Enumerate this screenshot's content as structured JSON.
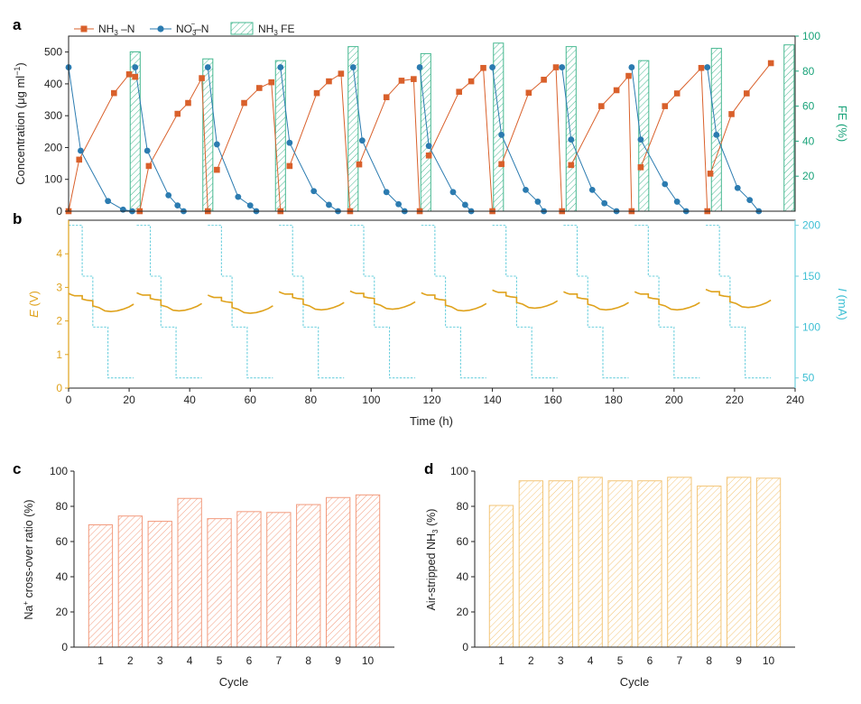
{
  "colors": {
    "nh3": "#d9602b",
    "no3": "#2b7bb0",
    "fe": "#45b890",
    "fe_axis": "#1aa37a",
    "potential": "#dfa21c",
    "current": "#6fd0de",
    "current_axis": "#3fc0d4",
    "bar_c": "#f29a7c",
    "bar_d": "#f3c577",
    "axis": "#222222"
  },
  "chart_data": [
    {
      "panel": "a",
      "type": "line",
      "x_shared_with": "b",
      "ylabel_left": "Concentration (μg ml",
      "ylabel_left_sup": "−1",
      "ylabel_left_tail": ")",
      "ylabel_right": "FE (%)",
      "ylim_left": [
        0,
        550
      ],
      "ylim_right": [
        0,
        100
      ],
      "yticks_left": [
        "0",
        "100",
        "200",
        "300",
        "400",
        "500"
      ],
      "yticks_right": [
        "20",
        "40",
        "60",
        "80",
        "100"
      ],
      "legend": [
        {
          "name": "NH",
          "sub": "3",
          "tail": " –N",
          "marker": "square"
        },
        {
          "name": "NO",
          "sub": "3",
          "sup": "−",
          "tail": "–N",
          "marker": "circle"
        },
        {
          "name": "NH",
          "sub": "3",
          "tail": " FE",
          "marker": "hatch"
        }
      ],
      "series": [
        {
          "name": "NH3–N",
          "cycles": [
            [
              [
                0,
                0
              ],
              [
                3.5,
                162
              ],
              [
                15,
                371
              ],
              [
                20,
                430
              ],
              [
                22,
                422
              ]
            ],
            [
              [
                23.5,
                0
              ],
              [
                26.5,
                142
              ],
              [
                36,
                306
              ],
              [
                39.5,
                340
              ],
              [
                44,
                418
              ],
              [
                46,
                0
              ]
            ],
            [
              [
                49,
                130
              ],
              [
                58,
                340
              ],
              [
                63,
                387
              ],
              [
                67,
                405
              ],
              [
                70,
                0
              ]
            ],
            [
              [
                73,
                142
              ],
              [
                82,
                371
              ],
              [
                86,
                408
              ],
              [
                90,
                432
              ],
              [
                93,
                0
              ]
            ],
            [
              [
                96,
                147
              ],
              [
                105,
                358
              ],
              [
                110,
                410
              ],
              [
                114,
                415
              ],
              [
                116,
                0
              ]
            ],
            [
              [
                119,
                175
              ],
              [
                129,
                375
              ],
              [
                133,
                408
              ],
              [
                137,
                450
              ],
              [
                140,
                0
              ]
            ],
            [
              [
                143,
                148
              ],
              [
                152,
                372
              ],
              [
                157,
                413
              ],
              [
                161,
                452
              ],
              [
                163,
                0
              ]
            ],
            [
              [
                166,
                145
              ],
              [
                176,
                330
              ],
              [
                181,
                380
              ],
              [
                185,
                425
              ],
              [
                186,
                0
              ]
            ],
            [
              [
                189,
                138
              ],
              [
                197,
                330
              ],
              [
                201,
                370
              ],
              [
                209,
                450
              ],
              [
                211,
                0
              ]
            ],
            [
              [
                212,
                118
              ],
              [
                219,
                305
              ],
              [
                224,
                370
              ],
              [
                232,
                465
              ]
            ]
          ]
        },
        {
          "name": "NO3−–N",
          "cycles": [
            [
              [
                0,
                452
              ],
              [
                4,
                190
              ],
              [
                13,
                32
              ],
              [
                18,
                5
              ],
              [
                21,
                0
              ]
            ],
            [
              [
                22,
                452
              ],
              [
                26,
                190
              ],
              [
                33,
                50
              ],
              [
                36,
                18
              ],
              [
                38,
                0
              ]
            ],
            [
              [
                46,
                452
              ],
              [
                49,
                210
              ],
              [
                56,
                45
              ],
              [
                60,
                18
              ],
              [
                62,
                0
              ]
            ],
            [
              [
                70,
                452
              ],
              [
                73,
                215
              ],
              [
                81,
                63
              ],
              [
                86,
                20
              ],
              [
                89,
                0
              ]
            ],
            [
              [
                94,
                452
              ],
              [
                97,
                222
              ],
              [
                105,
                60
              ],
              [
                109,
                22
              ],
              [
                111,
                0
              ]
            ],
            [
              [
                116,
                452
              ],
              [
                119,
                205
              ],
              [
                127,
                60
              ],
              [
                131,
                20
              ],
              [
                133,
                0
              ]
            ],
            [
              [
                140,
                452
              ],
              [
                143,
                240
              ],
              [
                151,
                67
              ],
              [
                155,
                30
              ],
              [
                157,
                0
              ]
            ],
            [
              [
                163,
                452
              ],
              [
                166,
                225
              ],
              [
                173,
                67
              ],
              [
                177,
                25
              ],
              [
                181,
                0
              ]
            ],
            [
              [
                186,
                452
              ],
              [
                189,
                225
              ],
              [
                197,
                85
              ],
              [
                201,
                30
              ],
              [
                204,
                0
              ]
            ],
            [
              [
                211,
                452
              ],
              [
                214,
                240
              ],
              [
                221,
                73
              ],
              [
                225,
                35
              ],
              [
                228,
                0
              ]
            ]
          ]
        },
        {
          "name": "NH3 FE",
          "bars": [
            {
              "x": 22,
              "width": 3.3,
              "value": 91
            },
            {
              "x": 46,
              "width": 3.3,
              "value": 87
            },
            {
              "x": 70,
              "width": 3.3,
              "value": 86
            },
            {
              "x": 94,
              "width": 3.3,
              "value": 94
            },
            {
              "x": 118,
              "width": 3.3,
              "value": 90
            },
            {
              "x": 142,
              "width": 3.3,
              "value": 96
            },
            {
              "x": 166,
              "width": 3.3,
              "value": 94
            },
            {
              "x": 190,
              "width": 3.3,
              "value": 86
            },
            {
              "x": 214,
              "width": 3.3,
              "value": 93
            },
            {
              "x": 238,
              "width": 3.3,
              "value": 95
            }
          ]
        }
      ]
    },
    {
      "panel": "b",
      "type": "line",
      "xlabel": "Time (h)",
      "xlim": [
        0,
        240
      ],
      "xticks": [
        "0",
        "20",
        "40",
        "60",
        "80",
        "100",
        "120",
        "140",
        "160",
        "180",
        "200",
        "220",
        "240"
      ],
      "ylabel_left": "E",
      "ylabel_left_tail": " (V)",
      "ylabel_right": "I",
      "ylabel_right_tail": " (mA)",
      "ylim_left": [
        0,
        5
      ],
      "ylim_right": [
        40,
        205
      ],
      "yticks_left": [
        "0",
        "1",
        "2",
        "3",
        "4"
      ],
      "yticks_right": [
        "50",
        "100",
        "150",
        "200"
      ],
      "cycle_starts": [
        0,
        22.5,
        46,
        69.5,
        93,
        116.5,
        140,
        163.5,
        187,
        210.5
      ],
      "cycle_end_offsets": [
        21.5,
        21.5,
        21.5,
        21.5,
        21.5,
        21.5,
        21.5,
        21.5,
        21.5,
        21.5
      ],
      "current_profile": [
        [
          0,
          200
        ],
        [
          4.5,
          150
        ],
        [
          8,
          100
        ],
        [
          13,
          50
        ]
      ],
      "potential_profile": [
        [
          0,
          2.82
        ],
        [
          1,
          2.78
        ],
        [
          2,
          2.75
        ],
        [
          4.5,
          2.75
        ],
        [
          4.5,
          2.65
        ],
        [
          6,
          2.62
        ],
        [
          8,
          2.6
        ],
        [
          8,
          2.45
        ],
        [
          10,
          2.4
        ],
        [
          12,
          2.3
        ],
        [
          14,
          2.28
        ],
        [
          16,
          2.3
        ],
        [
          18,
          2.35
        ],
        [
          20,
          2.42
        ],
        [
          21.5,
          2.5
        ]
      ]
    },
    {
      "panel": "c",
      "type": "bar",
      "categories": [
        "1",
        "2",
        "3",
        "4",
        "5",
        "6",
        "7",
        "8",
        "9",
        "10"
      ],
      "values": [
        69.5,
        74.5,
        71.5,
        84.5,
        73,
        77,
        76.5,
        81,
        85,
        86.5
      ],
      "xlabel": "Cycle",
      "ylabel": "Na",
      "ylabel_sup": "+",
      "ylabel_tail": " cross-over ratio (%)",
      "ylim": [
        0,
        100
      ],
      "yticks": [
        "0",
        "20",
        "40",
        "60",
        "80",
        "100"
      ]
    },
    {
      "panel": "d",
      "type": "bar",
      "categories": [
        "1",
        "2",
        "3",
        "4",
        "5",
        "6",
        "7",
        "8",
        "9",
        "10"
      ],
      "values": [
        80.5,
        94.5,
        94.5,
        96.5,
        94.5,
        94.5,
        96.5,
        91.5,
        96.5,
        96
      ],
      "xlabel": "Cycle",
      "ylabel": "Air-stripped NH",
      "ylabel_sub": "3",
      "ylabel_tail": " (%)",
      "ylim": [
        0,
        100
      ],
      "yticks": [
        "0",
        "20",
        "40",
        "60",
        "80",
        "100"
      ]
    }
  ],
  "panel_labels": {
    "a": "a",
    "b": "b",
    "c": "c",
    "d": "d"
  }
}
